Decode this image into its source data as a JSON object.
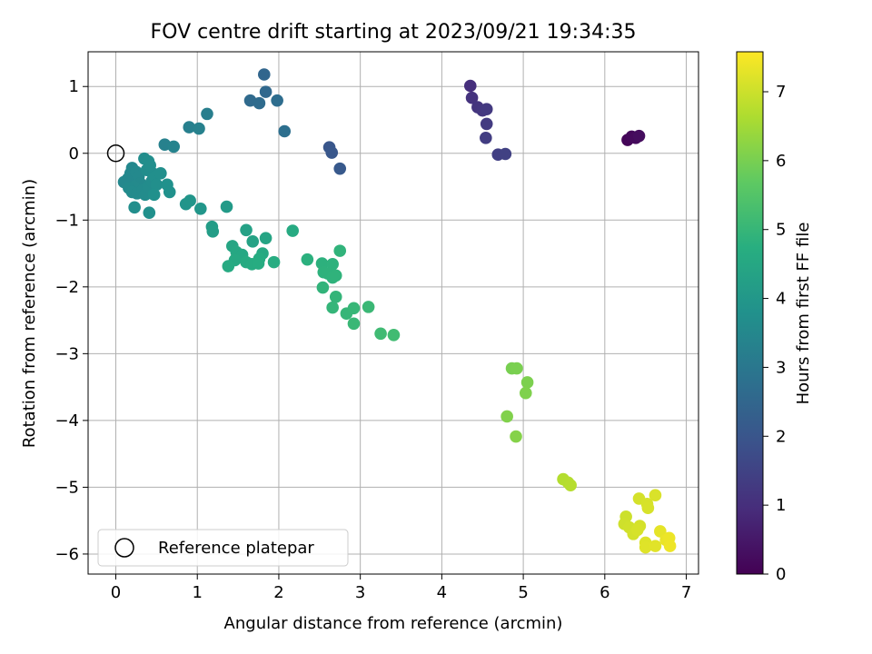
{
  "chart_data": {
    "type": "scatter",
    "title": "FOV centre drift starting at 2023/09/21 19:34:35",
    "xlabel": "Angular distance from reference (arcmin)",
    "ylabel": "Rotation from reference (arcmin)",
    "xlim": [
      -0.34,
      7.15
    ],
    "ylim": [
      -6.3,
      1.52
    ],
    "xticks": [
      0,
      1,
      2,
      3,
      4,
      5,
      6,
      7
    ],
    "yticks": [
      -6,
      -5,
      -4,
      -3,
      -2,
      -1,
      0,
      1
    ],
    "grid": true,
    "colormap": "viridis",
    "colorbar": {
      "label": "Hours from first FF file",
      "min": 0,
      "max": 7.58,
      "ticks": [
        0,
        1,
        2,
        3,
        4,
        5,
        6,
        7
      ]
    },
    "legend": {
      "position": "lower-left",
      "entries": [
        {
          "label": "Reference platepar",
          "marker": "open-circle"
        }
      ]
    },
    "reference_point": {
      "x": 0,
      "y": 0
    },
    "points": [
      {
        "x": 6.28,
        "y": 0.2,
        "h": 0.1
      },
      {
        "x": 6.33,
        "y": 0.25,
        "h": 0.15
      },
      {
        "x": 6.38,
        "y": 0.23,
        "h": 0.2
      },
      {
        "x": 6.42,
        "y": 0.26,
        "h": 0.25
      },
      {
        "x": 4.35,
        "y": 1.01,
        "h": 1.0
      },
      {
        "x": 4.37,
        "y": 0.83,
        "h": 1.1
      },
      {
        "x": 4.44,
        "y": 0.69,
        "h": 1.15
      },
      {
        "x": 4.5,
        "y": 0.64,
        "h": 1.2
      },
      {
        "x": 4.55,
        "y": 0.66,
        "h": 1.25
      },
      {
        "x": 4.55,
        "y": 0.44,
        "h": 1.3
      },
      {
        "x": 4.54,
        "y": 0.23,
        "h": 1.35
      },
      {
        "x": 4.69,
        "y": -0.02,
        "h": 1.4
      },
      {
        "x": 4.78,
        "y": -0.01,
        "h": 1.45
      },
      {
        "x": 1.82,
        "y": 1.18,
        "h": 2.5
      },
      {
        "x": 1.84,
        "y": 0.92,
        "h": 2.55
      },
      {
        "x": 1.65,
        "y": 0.79,
        "h": 2.6
      },
      {
        "x": 1.76,
        "y": 0.75,
        "h": 2.65
      },
      {
        "x": 1.98,
        "y": 0.79,
        "h": 2.7
      },
      {
        "x": 2.07,
        "y": 0.33,
        "h": 2.75
      },
      {
        "x": 2.62,
        "y": 0.09,
        "h": 2.0
      },
      {
        "x": 2.65,
        "y": 0.01,
        "h": 2.05
      },
      {
        "x": 2.75,
        "y": -0.23,
        "h": 2.1
      },
      {
        "x": 1.12,
        "y": 0.59,
        "h": 3.2
      },
      {
        "x": 0.9,
        "y": 0.39,
        "h": 3.25
      },
      {
        "x": 1.02,
        "y": 0.37,
        "h": 3.3
      },
      {
        "x": 0.6,
        "y": 0.13,
        "h": 3.3
      },
      {
        "x": 0.71,
        "y": 0.1,
        "h": 3.35
      },
      {
        "x": 0.1,
        "y": -0.43,
        "h": 3.5
      },
      {
        "x": 0.15,
        "y": -0.38,
        "h": 3.5
      },
      {
        "x": 0.18,
        "y": -0.3,
        "h": 3.52
      },
      {
        "x": 0.2,
        "y": -0.22,
        "h": 3.53
      },
      {
        "x": 0.25,
        "y": -0.28,
        "h": 3.55
      },
      {
        "x": 0.28,
        "y": -0.35,
        "h": 3.55
      },
      {
        "x": 0.3,
        "y": -0.45,
        "h": 3.56
      },
      {
        "x": 0.22,
        "y": -0.5,
        "h": 3.57
      },
      {
        "x": 0.16,
        "y": -0.52,
        "h": 3.58
      },
      {
        "x": 0.2,
        "y": -0.58,
        "h": 3.6
      },
      {
        "x": 0.26,
        "y": -0.6,
        "h": 3.6
      },
      {
        "x": 0.33,
        "y": -0.55,
        "h": 3.62
      },
      {
        "x": 0.36,
        "y": -0.62,
        "h": 3.63
      },
      {
        "x": 0.4,
        "y": -0.5,
        "h": 3.64
      },
      {
        "x": 0.44,
        "y": -0.42,
        "h": 3.65
      },
      {
        "x": 0.45,
        "y": -0.3,
        "h": 3.66
      },
      {
        "x": 0.38,
        "y": -0.25,
        "h": 3.67
      },
      {
        "x": 0.35,
        "y": -0.08,
        "h": 3.68
      },
      {
        "x": 0.4,
        "y": -0.12,
        "h": 3.69
      },
      {
        "x": 0.42,
        "y": -0.18,
        "h": 3.7
      },
      {
        "x": 0.48,
        "y": -0.35,
        "h": 3.72
      },
      {
        "x": 0.55,
        "y": -0.3,
        "h": 3.73
      },
      {
        "x": 0.5,
        "y": -0.47,
        "h": 3.74
      },
      {
        "x": 0.47,
        "y": -0.62,
        "h": 3.75
      },
      {
        "x": 0.63,
        "y": -0.47,
        "h": 3.78
      },
      {
        "x": 0.66,
        "y": -0.58,
        "h": 3.8
      },
      {
        "x": 0.23,
        "y": -0.81,
        "h": 3.7
      },
      {
        "x": 0.41,
        "y": -0.89,
        "h": 3.75
      },
      {
        "x": 0.86,
        "y": -0.76,
        "h": 3.9
      },
      {
        "x": 0.91,
        "y": -0.71,
        "h": 3.92
      },
      {
        "x": 1.04,
        "y": -0.83,
        "h": 3.95
      },
      {
        "x": 1.36,
        "y": -0.8,
        "h": 4.1
      },
      {
        "x": 1.18,
        "y": -1.1,
        "h": 4.15
      },
      {
        "x": 1.19,
        "y": -1.17,
        "h": 4.18
      },
      {
        "x": 1.6,
        "y": -1.15,
        "h": 4.3
      },
      {
        "x": 1.84,
        "y": -1.27,
        "h": 4.4
      },
      {
        "x": 1.68,
        "y": -1.32,
        "h": 4.35
      },
      {
        "x": 1.43,
        "y": -1.39,
        "h": 4.45
      },
      {
        "x": 1.48,
        "y": -1.48,
        "h": 4.5
      },
      {
        "x": 1.55,
        "y": -1.52,
        "h": 4.52
      },
      {
        "x": 1.8,
        "y": -1.5,
        "h": 4.55
      },
      {
        "x": 1.46,
        "y": -1.6,
        "h": 4.55
      },
      {
        "x": 1.38,
        "y": -1.69,
        "h": 4.6
      },
      {
        "x": 1.6,
        "y": -1.63,
        "h": 4.62
      },
      {
        "x": 1.67,
        "y": -1.66,
        "h": 4.63
      },
      {
        "x": 1.76,
        "y": -1.58,
        "h": 4.65
      },
      {
        "x": 1.75,
        "y": -1.65,
        "h": 4.66
      },
      {
        "x": 1.94,
        "y": -1.63,
        "h": 4.68
      },
      {
        "x": 2.17,
        "y": -1.16,
        "h": 4.6
      },
      {
        "x": 2.35,
        "y": -1.59,
        "h": 4.8
      },
      {
        "x": 2.53,
        "y": -1.65,
        "h": 4.82
      },
      {
        "x": 2.66,
        "y": -1.66,
        "h": 4.84
      },
      {
        "x": 2.55,
        "y": -1.78,
        "h": 4.85
      },
      {
        "x": 2.6,
        "y": -1.8,
        "h": 4.86
      },
      {
        "x": 2.66,
        "y": -1.86,
        "h": 4.87
      },
      {
        "x": 2.7,
        "y": -1.83,
        "h": 4.88
      },
      {
        "x": 2.75,
        "y": -1.46,
        "h": 4.9
      },
      {
        "x": 2.54,
        "y": -2.01,
        "h": 4.92
      },
      {
        "x": 2.7,
        "y": -2.15,
        "h": 4.95
      },
      {
        "x": 2.66,
        "y": -2.31,
        "h": 4.97
      },
      {
        "x": 2.83,
        "y": -2.4,
        "h": 5.0
      },
      {
        "x": 2.92,
        "y": -2.32,
        "h": 5.02
      },
      {
        "x": 2.92,
        "y": -2.55,
        "h": 5.05
      },
      {
        "x": 3.1,
        "y": -2.3,
        "h": 5.07
      },
      {
        "x": 3.25,
        "y": -2.7,
        "h": 5.15
      },
      {
        "x": 3.41,
        "y": -2.72,
        "h": 5.18
      },
      {
        "x": 4.86,
        "y": -3.22,
        "h": 6.0
      },
      {
        "x": 4.92,
        "y": -3.22,
        "h": 6.02
      },
      {
        "x": 5.05,
        "y": -3.43,
        "h": 6.05
      },
      {
        "x": 5.03,
        "y": -3.59,
        "h": 6.08
      },
      {
        "x": 4.8,
        "y": -3.94,
        "h": 6.1
      },
      {
        "x": 4.91,
        "y": -4.24,
        "h": 6.15
      },
      {
        "x": 5.49,
        "y": -4.88,
        "h": 6.7
      },
      {
        "x": 5.55,
        "y": -4.93,
        "h": 6.72
      },
      {
        "x": 5.58,
        "y": -4.97,
        "h": 6.74
      },
      {
        "x": 6.42,
        "y": -5.17,
        "h": 7.1
      },
      {
        "x": 6.52,
        "y": -5.25,
        "h": 7.12
      },
      {
        "x": 6.53,
        "y": -5.31,
        "h": 7.13
      },
      {
        "x": 6.62,
        "y": -5.12,
        "h": 7.15
      },
      {
        "x": 6.26,
        "y": -5.44,
        "h": 7.0
      },
      {
        "x": 6.24,
        "y": -5.55,
        "h": 7.02
      },
      {
        "x": 6.3,
        "y": -5.6,
        "h": 7.05
      },
      {
        "x": 6.35,
        "y": -5.7,
        "h": 7.08
      },
      {
        "x": 6.43,
        "y": -5.58,
        "h": 7.1
      },
      {
        "x": 6.4,
        "y": -5.64,
        "h": 7.12
      },
      {
        "x": 6.5,
        "y": -5.83,
        "h": 7.2
      },
      {
        "x": 6.5,
        "y": -5.9,
        "h": 7.22
      },
      {
        "x": 6.62,
        "y": -5.88,
        "h": 7.25
      },
      {
        "x": 6.68,
        "y": -5.66,
        "h": 7.3
      },
      {
        "x": 6.75,
        "y": -5.79,
        "h": 7.35
      },
      {
        "x": 6.79,
        "y": -5.76,
        "h": 7.38
      },
      {
        "x": 6.8,
        "y": -5.88,
        "h": 7.4
      }
    ]
  }
}
